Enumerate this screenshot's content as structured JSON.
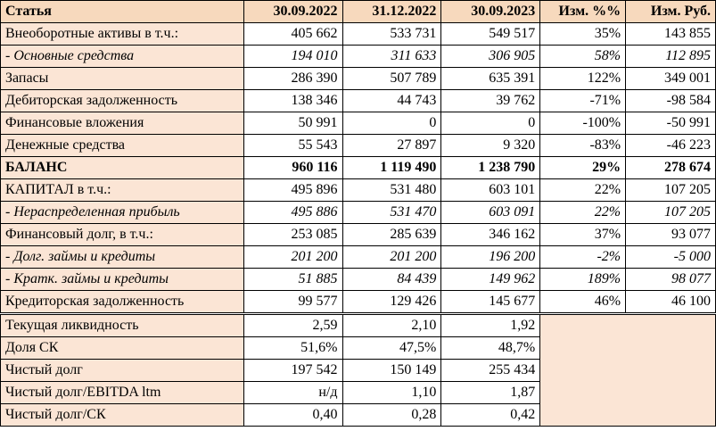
{
  "header": [
    "Статья",
    "30.09.2022",
    "31.12.2022",
    "30.09.2023",
    "Изм. %%",
    "Изм. Руб."
  ],
  "rows": [
    {
      "label": "Внеоборотные активы в т.ч.:",
      "v1": "405 662",
      "v2": "533 731",
      "v3": "549 517",
      "pct": "35%",
      "rub": "143 855"
    },
    {
      "label": " - Основные средства",
      "v1": "194 010",
      "v2": "311 633",
      "v3": "306 905",
      "pct": "58%",
      "rub": "112 895"
    },
    {
      "label": "Запасы",
      "v1": "286 390",
      "v2": "507 789",
      "v3": "635 391",
      "pct": "122%",
      "rub": "349 001"
    },
    {
      "label": "Дебиторская задолженность",
      "v1": "138 346",
      "v2": "44 743",
      "v3": "39 762",
      "pct": "-71%",
      "rub": "-98 584"
    },
    {
      "label": "Финансовые вложения",
      "v1": "50 991",
      "v2": "0",
      "v3": "0",
      "pct": "-100%",
      "rub": "-50 991"
    },
    {
      "label": "Денежные средства",
      "v1": "55 543",
      "v2": "27 897",
      "v3": "9 320",
      "pct": "-83%",
      "rub": "-46 223"
    },
    {
      "label": "БАЛАНС",
      "v1": "960 116",
      "v2": "1 119 490",
      "v3": "1 238 790",
      "pct": "29%",
      "rub": "278 674"
    },
    {
      "label": "КАПИТАЛ в т.ч.:",
      "v1": "495 896",
      "v2": "531 480",
      "v3": "603 101",
      "pct": "22%",
      "rub": "107 205"
    },
    {
      "label": " - Нераспределенная  прибыль",
      "v1": "495 886",
      "v2": "531 470",
      "v3": "603 091",
      "pct": "22%",
      "rub": "107 205"
    },
    {
      "label": "Финансовый долг, в т.ч.:",
      "v1": "253 085",
      "v2": "285 639",
      "v3": "346 162",
      "pct": "37%",
      "rub": "93 077"
    },
    {
      "label": " - Долг. займы и кредиты",
      "v1": "201 200",
      "v2": "201 200",
      "v3": "196 200",
      "pct": "-2%",
      "rub": "-5 000"
    },
    {
      "label": " - Кратк. займы и кредиты",
      "v1": "51 885",
      "v2": "84 439",
      "v3": "149 962",
      "pct": "189%",
      "rub": "98 077"
    },
    {
      "label": "Кредиторская задолженность",
      "v1": "99 577",
      "v2": "129 426",
      "v3": "145 677",
      "pct": "46%",
      "rub": "46 100"
    }
  ],
  "ratios": [
    {
      "label": "Текущая ликвидность",
      "v1": "2,59",
      "v2": "2,10",
      "v3": "1,92"
    },
    {
      "label": "Доля СК",
      "v1": "51,6%",
      "v2": "47,5%",
      "v3": "48,7%"
    },
    {
      "label": "Чистый долг",
      "v1": "197 542",
      "v2": "150 149",
      "v3": "255 434"
    },
    {
      "label": "Чистый долг/EBITDA ltm",
      "v1": "н/д",
      "v2": "1,10",
      "v3": "1,87"
    },
    {
      "label": "Чистый долг/СК",
      "v1": "0,40",
      "v2": "0,28",
      "v3": "0,42"
    }
  ]
}
